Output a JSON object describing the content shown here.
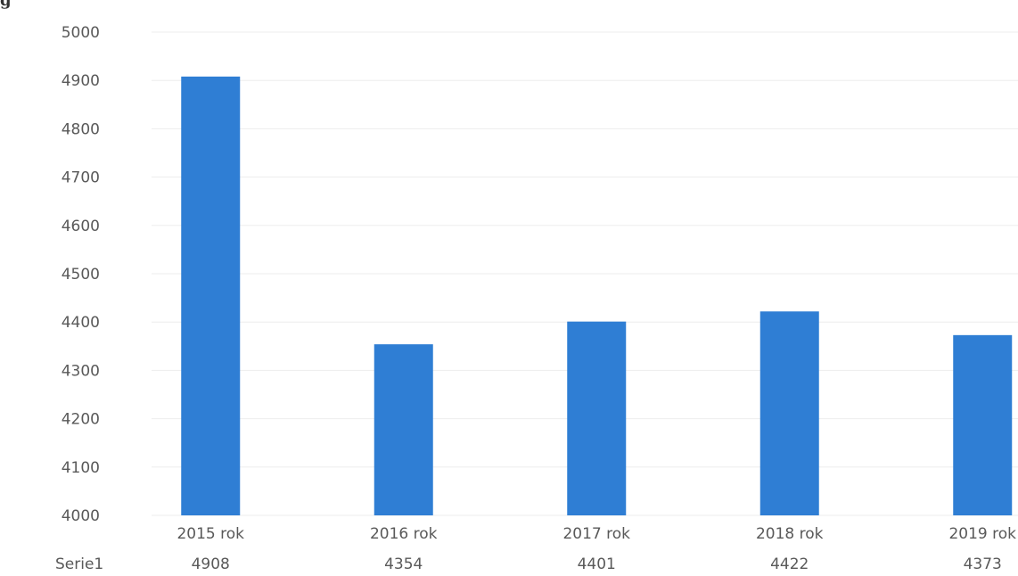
{
  "chart_data": {
    "type": "bar",
    "corner_text": "g",
    "categories": [
      "2015 rok",
      "2016 rok",
      "2017 rok",
      "2018 rok",
      "2019 rok"
    ],
    "series": [
      {
        "name": "Serie1",
        "values": [
          4908,
          4354,
          4401,
          4422,
          4373
        ],
        "color": "#2f7ed4"
      }
    ],
    "data_table_values": [
      "4908",
      "4354",
      "4401",
      "4422",
      "4373"
    ],
    "ylim": [
      4000,
      5000
    ],
    "y_ticks": [
      "4000",
      "4100",
      "4200",
      "4300",
      "4400",
      "4500",
      "4600",
      "4700",
      "4800",
      "4900",
      "5000"
    ],
    "grid": true,
    "legend": "none",
    "data_table": true
  }
}
